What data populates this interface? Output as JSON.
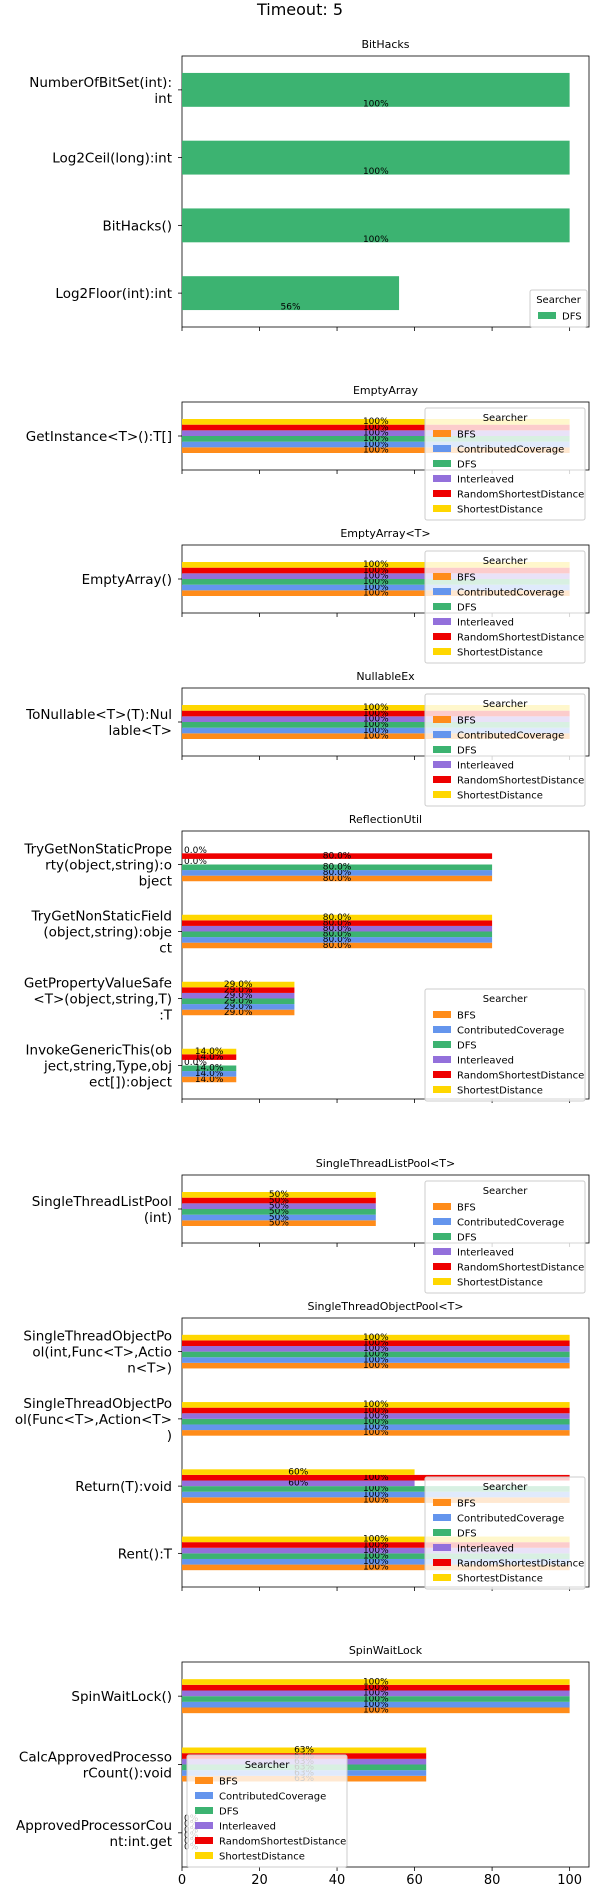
{
  "figure_title": "Timeout: 5",
  "colors": {
    "BFS": "#ff8c1a",
    "ContributedCoverage": "#6495ed",
    "DFS": "#3cb371",
    "Interleaved": "#9370db",
    "RandomShortestDistance": "#ee0000",
    "ShortestDistance": "#ffd700"
  },
  "chart_data": [
    {
      "type": "bar",
      "orientation": "horizontal",
      "title": "BitHacks",
      "categories": [
        "NumberOfBitSet(int):\nint",
        "Log2Ceil(long):int",
        "BitHacks()",
        "Log2Floor(int):int"
      ],
      "series": [
        {
          "name": "DFS",
          "values": [
            100,
            100,
            100,
            56
          ],
          "labels": [
            "100%",
            "100%",
            "100%",
            "56%"
          ]
        }
      ],
      "xlim": [
        0,
        105
      ],
      "legend_title": "Searcher",
      "legend_position": "lower-right"
    },
    {
      "type": "bar",
      "orientation": "horizontal",
      "title": "EmptyArray",
      "categories": [
        "GetInstance<T>():T[]"
      ],
      "series": [
        {
          "name": "BFS",
          "values": [
            100
          ],
          "labels": [
            "100%"
          ]
        },
        {
          "name": "ContributedCoverage",
          "values": [
            100
          ],
          "labels": [
            "100%"
          ]
        },
        {
          "name": "DFS",
          "values": [
            100
          ],
          "labels": [
            "100%"
          ]
        },
        {
          "name": "Interleaved",
          "values": [
            100
          ],
          "labels": [
            "100%"
          ]
        },
        {
          "name": "RandomShortestDistance",
          "values": [
            100
          ],
          "labels": [
            "100%"
          ]
        },
        {
          "name": "ShortestDistance",
          "values": [
            100
          ],
          "labels": [
            "100%"
          ]
        }
      ],
      "xlim": [
        0,
        105
      ],
      "legend_title": "Searcher",
      "legend_position": "right"
    },
    {
      "type": "bar",
      "orientation": "horizontal",
      "title": "EmptyArray<T>",
      "categories": [
        "EmptyArray()"
      ],
      "series": [
        {
          "name": "BFS",
          "values": [
            100
          ],
          "labels": [
            "100%"
          ]
        },
        {
          "name": "ContributedCoverage",
          "values": [
            100
          ],
          "labels": [
            "100%"
          ]
        },
        {
          "name": "DFS",
          "values": [
            100
          ],
          "labels": [
            "100%"
          ]
        },
        {
          "name": "Interleaved",
          "values": [
            100
          ],
          "labels": [
            "100%"
          ]
        },
        {
          "name": "RandomShortestDistance",
          "values": [
            100
          ],
          "labels": [
            "100%"
          ]
        },
        {
          "name": "ShortestDistance",
          "values": [
            100
          ],
          "labels": [
            "100%"
          ]
        }
      ],
      "xlim": [
        0,
        105
      ],
      "legend_title": "Searcher",
      "legend_position": "right"
    },
    {
      "type": "bar",
      "orientation": "horizontal",
      "title": "NullableEx",
      "categories": [
        "ToNullable<T>(T):Nul\nlable<T>"
      ],
      "series": [
        {
          "name": "BFS",
          "values": [
            100
          ],
          "labels": [
            "100%"
          ]
        },
        {
          "name": "ContributedCoverage",
          "values": [
            100
          ],
          "labels": [
            "100%"
          ]
        },
        {
          "name": "DFS",
          "values": [
            100
          ],
          "labels": [
            "100%"
          ]
        },
        {
          "name": "Interleaved",
          "values": [
            100
          ],
          "labels": [
            "100%"
          ]
        },
        {
          "name": "RandomShortestDistance",
          "values": [
            100
          ],
          "labels": [
            "100%"
          ]
        },
        {
          "name": "ShortestDistance",
          "values": [
            100
          ],
          "labels": [
            "100%"
          ]
        }
      ],
      "xlim": [
        0,
        105
      ],
      "legend_title": "Searcher",
      "legend_position": "right"
    },
    {
      "type": "bar",
      "orientation": "horizontal",
      "title": "ReflectionUtil",
      "categories": [
        "TryGetNonStaticPrope\nrty(object,string):o\nbject",
        "TryGetNonStaticField\n(object,string):obje\nct",
        "GetPropertyValueSafe\n<T>(object,string,T)\n:T",
        "InvokeGenericThis(ob\nject,string,Type,obj\nect[]):object"
      ],
      "series": [
        {
          "name": "BFS",
          "values": [
            80,
            80,
            29,
            14
          ],
          "labels": [
            "80.0%",
            "80.0%",
            "29.0%",
            "14.0%"
          ]
        },
        {
          "name": "ContributedCoverage",
          "values": [
            80,
            80,
            29,
            14
          ],
          "labels": [
            "80.0%",
            "80.0%",
            "29.0%",
            "14.0%"
          ]
        },
        {
          "name": "DFS",
          "values": [
            80,
            80,
            29,
            14
          ],
          "labels": [
            "80.0%",
            "80.0%",
            "29.0%",
            "14.0%"
          ]
        },
        {
          "name": "Interleaved",
          "values": [
            0,
            80,
            29,
            0
          ],
          "labels": [
            "0.0%",
            "80.0%",
            "29.0%",
            "0.0%"
          ]
        },
        {
          "name": "RandomShortestDistance",
          "values": [
            80,
            80,
            29,
            14
          ],
          "labels": [
            "80.0%",
            "80.0%",
            "29.0%",
            "14.0%"
          ]
        },
        {
          "name": "ShortestDistance",
          "values": [
            0,
            80,
            29,
            14
          ],
          "labels": [
            "0.0%",
            "80.0%",
            "29.0%",
            "14.0%"
          ]
        }
      ],
      "xlim": [
        0,
        105
      ],
      "legend_title": "Searcher",
      "legend_position": "lower-right"
    },
    {
      "type": "bar",
      "orientation": "horizontal",
      "title": "SingleThreadListPool<T>",
      "categories": [
        "SingleThreadListPool\n(int)"
      ],
      "series": [
        {
          "name": "BFS",
          "values": [
            50
          ],
          "labels": [
            "50%"
          ]
        },
        {
          "name": "ContributedCoverage",
          "values": [
            50
          ],
          "labels": [
            "50%"
          ]
        },
        {
          "name": "DFS",
          "values": [
            50
          ],
          "labels": [
            "50%"
          ]
        },
        {
          "name": "Interleaved",
          "values": [
            50
          ],
          "labels": [
            "50%"
          ]
        },
        {
          "name": "RandomShortestDistance",
          "values": [
            50
          ],
          "labels": [
            "50%"
          ]
        },
        {
          "name": "ShortestDistance",
          "values": [
            50
          ],
          "labels": [
            "50%"
          ]
        }
      ],
      "xlim": [
        0,
        105
      ],
      "legend_title": "Searcher",
      "legend_position": "right"
    },
    {
      "type": "bar",
      "orientation": "horizontal",
      "title": "SingleThreadObjectPool<T>",
      "categories": [
        "SingleThreadObjectPo\nol(int,Func<T>,Actio\nn<T>)",
        "SingleThreadObjectPo\nol(Func<T>,Action<T>\n)",
        "Return(T):void",
        "Rent():T"
      ],
      "series": [
        {
          "name": "BFS",
          "values": [
            100,
            100,
            100,
            100
          ],
          "labels": [
            "100%",
            "100%",
            "100%",
            "100%"
          ]
        },
        {
          "name": "ContributedCoverage",
          "values": [
            100,
            100,
            100,
            100
          ],
          "labels": [
            "100%",
            "100%",
            "100%",
            "100%"
          ]
        },
        {
          "name": "DFS",
          "values": [
            100,
            100,
            100,
            100
          ],
          "labels": [
            "100%",
            "100%",
            "100%",
            "100%"
          ]
        },
        {
          "name": "Interleaved",
          "values": [
            100,
            100,
            60,
            100
          ],
          "labels": [
            "100%",
            "100%",
            "60%",
            "100%"
          ]
        },
        {
          "name": "RandomShortestDistance",
          "values": [
            100,
            100,
            100,
            100
          ],
          "labels": [
            "100%",
            "100%",
            "100%",
            "100%"
          ]
        },
        {
          "name": "ShortestDistance",
          "values": [
            100,
            100,
            60,
            100
          ],
          "labels": [
            "100%",
            "100%",
            "60%",
            "100%"
          ]
        }
      ],
      "xlim": [
        0,
        105
      ],
      "legend_title": "Searcher",
      "legend_position": "lower-right"
    },
    {
      "type": "bar",
      "orientation": "horizontal",
      "title": "SpinWaitLock",
      "categories": [
        "SpinWaitLock()",
        "CalcApprovedProcesso\nrCount():void",
        "ApprovedProcessorCou\nnt:int.get"
      ],
      "series": [
        {
          "name": "BFS",
          "values": [
            100,
            63,
            0
          ],
          "labels": [
            "100%",
            "63%",
            "0%"
          ]
        },
        {
          "name": "ContributedCoverage",
          "values": [
            100,
            63,
            0
          ],
          "labels": [
            "100%",
            "63%",
            "0%"
          ]
        },
        {
          "name": "DFS",
          "values": [
            100,
            63,
            0
          ],
          "labels": [
            "100%",
            "63%",
            "0%"
          ]
        },
        {
          "name": "Interleaved",
          "values": [
            100,
            63,
            0
          ],
          "labels": [
            "100%",
            "63%",
            "0%"
          ]
        },
        {
          "name": "RandomShortestDistance",
          "values": [
            100,
            63,
            0
          ],
          "labels": [
            "100%",
            "63%",
            "0%"
          ]
        },
        {
          "name": "ShortestDistance",
          "values": [
            100,
            63,
            0
          ],
          "labels": [
            "100%",
            "63%",
            "0%"
          ]
        }
      ],
      "xlim": [
        0,
        105
      ],
      "xticks": [
        "0",
        "20",
        "40",
        "60",
        "80",
        "100"
      ],
      "legend_title": "Searcher",
      "legend_position": "lower-left"
    }
  ]
}
